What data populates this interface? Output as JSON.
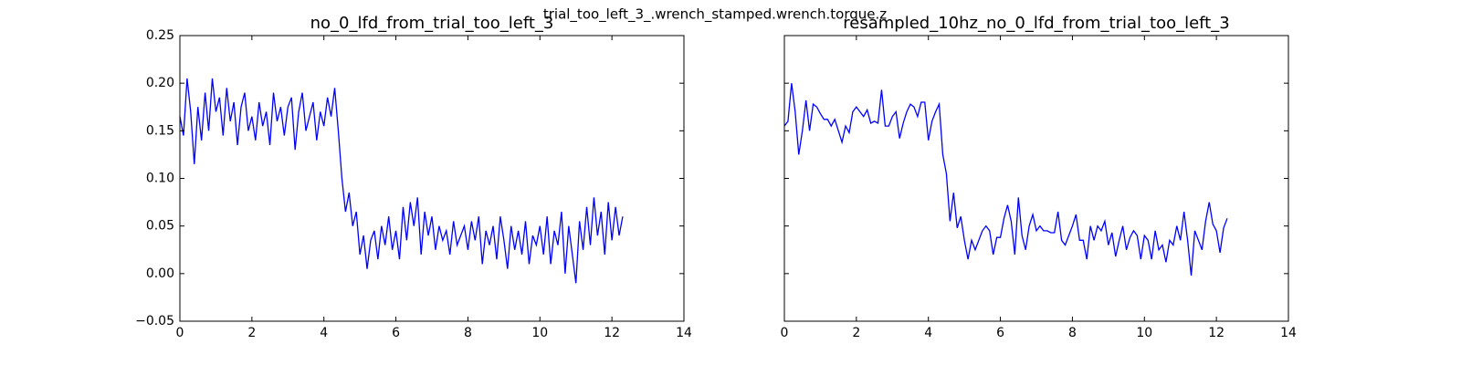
{
  "title": "trial_too_left_3_.wrench_stamped.wrench.torque.z",
  "chart_data": [
    {
      "type": "line",
      "title": "no_0_lfd_from_trial_too_left_3",
      "x": [
        0,
        0.1,
        0.2,
        0.3,
        0.4,
        0.5,
        0.6,
        0.7,
        0.8,
        0.9,
        1,
        1.1,
        1.2,
        1.3,
        1.4,
        1.5,
        1.6,
        1.7,
        1.8,
        1.9,
        2,
        2.1,
        2.2,
        2.3,
        2.4,
        2.5,
        2.6,
        2.7,
        2.8,
        2.9,
        3,
        3.1,
        3.2,
        3.3,
        3.4,
        3.5,
        3.6,
        3.7,
        3.8,
        3.9,
        4,
        4.1,
        4.2,
        4.3,
        4.4,
        4.5,
        4.6,
        4.7,
        4.8,
        4.9,
        5,
        5.1,
        5.2,
        5.3,
        5.4,
        5.5,
        5.6,
        5.7,
        5.8,
        5.9,
        6,
        6.1,
        6.2,
        6.3,
        6.4,
        6.5,
        6.6,
        6.7,
        6.8,
        6.9,
        7,
        7.1,
        7.2,
        7.3,
        7.4,
        7.5,
        7.6,
        7.7,
        7.8,
        7.9,
        8,
        8.1,
        8.2,
        8.3,
        8.4,
        8.5,
        8.6,
        8.7,
        8.8,
        8.9,
        9,
        9.1,
        9.2,
        9.3,
        9.4,
        9.5,
        9.6,
        9.7,
        9.8,
        9.9,
        10,
        10.1,
        10.2,
        10.3,
        10.4,
        10.5,
        10.6,
        10.7,
        10.8,
        10.9,
        11,
        11.1,
        11.2,
        11.3,
        11.4,
        11.5,
        11.6,
        11.7,
        11.8,
        11.9,
        12,
        12.1,
        12.2,
        12.3
      ],
      "series": [
        {
          "color": "#0000ff",
          "values": [
            0.165,
            0.145,
            0.205,
            0.17,
            0.115,
            0.175,
            0.14,
            0.19,
            0.15,
            0.205,
            0.17,
            0.185,
            0.145,
            0.195,
            0.16,
            0.18,
            0.135,
            0.175,
            0.19,
            0.15,
            0.165,
            0.14,
            0.18,
            0.155,
            0.17,
            0.135,
            0.19,
            0.16,
            0.175,
            0.145,
            0.175,
            0.185,
            0.13,
            0.17,
            0.19,
            0.15,
            0.165,
            0.18,
            0.14,
            0.17,
            0.155,
            0.185,
            0.165,
            0.195,
            0.15,
            0.1,
            0.065,
            0.085,
            0.05,
            0.065,
            0.02,
            0.04,
            0.005,
            0.035,
            0.045,
            0.015,
            0.05,
            0.03,
            0.06,
            0.025,
            0.045,
            0.015,
            0.07,
            0.035,
            0.075,
            0.05,
            0.08,
            0.02,
            0.065,
            0.04,
            0.06,
            0.025,
            0.05,
            0.035,
            0.045,
            0.02,
            0.055,
            0.03,
            0.04,
            0.05,
            0.025,
            0.055,
            0.035,
            0.06,
            0.01,
            0.045,
            0.03,
            0.05,
            0.015,
            0.06,
            0.035,
            0.005,
            0.05,
            0.025,
            0.045,
            0.02,
            0.055,
            0.01,
            0.04,
            0.03,
            0.05,
            0.02,
            0.06,
            0.01,
            0.045,
            0.03,
            0.065,
            0.0,
            0.05,
            0.02,
            -0.01,
            0.055,
            0.025,
            0.07,
            0.03,
            0.08,
            0.04,
            0.065,
            0.02,
            0.075,
            0.035,
            0.07,
            0.04,
            0.06
          ]
        }
      ],
      "xlim": [
        0,
        14
      ],
      "xticks": [
        0,
        2,
        4,
        6,
        8,
        10,
        12,
        14
      ],
      "ylim": [
        -0.05,
        0.25
      ],
      "yticks": [
        {
          "value": -0.05,
          "label": "−0.05"
        },
        {
          "value": 0,
          "label": "0.00"
        },
        0.05,
        {
          "value": 0.1,
          "label": "0.10"
        },
        0.15,
        {
          "value": 0.2,
          "label": "0.20"
        },
        0.25
      ]
    },
    {
      "type": "line",
      "title": "resampled_10hz_no_0_lfd_from_trial_too_left_3",
      "x": [
        0,
        0.1,
        0.2,
        0.3,
        0.4,
        0.5,
        0.6,
        0.7,
        0.8,
        0.9,
        1,
        1.1,
        1.2,
        1.3,
        1.4,
        1.5,
        1.6,
        1.7,
        1.8,
        1.9,
        2,
        2.1,
        2.2,
        2.3,
        2.4,
        2.5,
        2.6,
        2.7,
        2.8,
        2.9,
        3,
        3.1,
        3.2,
        3.3,
        3.4,
        3.5,
        3.6,
        3.7,
        3.8,
        3.9,
        4,
        4.1,
        4.2,
        4.3,
        4.4,
        4.5,
        4.6,
        4.7,
        4.8,
        4.9,
        5,
        5.1,
        5.2,
        5.3,
        5.4,
        5.5,
        5.6,
        5.7,
        5.8,
        5.9,
        6,
        6.1,
        6.2,
        6.3,
        6.4,
        6.5,
        6.6,
        6.7,
        6.8,
        6.9,
        7,
        7.1,
        7.2,
        7.3,
        7.4,
        7.5,
        7.6,
        7.7,
        7.8,
        7.9,
        8,
        8.1,
        8.2,
        8.3,
        8.4,
        8.5,
        8.6,
        8.7,
        8.8,
        8.9,
        9,
        9.1,
        9.2,
        9.3,
        9.4,
        9.5,
        9.6,
        9.7,
        9.8,
        9.9,
        10,
        10.1,
        10.2,
        10.3,
        10.4,
        10.5,
        10.6,
        10.7,
        10.8,
        10.9,
        11,
        11.1,
        11.2,
        11.3,
        11.4,
        11.5,
        11.6,
        11.7,
        11.8,
        11.9,
        12,
        12.1,
        12.2,
        12.3
      ],
      "series": [
        {
          "color": "#0000ff",
          "values": [
            0.155,
            0.16,
            0.2,
            0.17,
            0.125,
            0.15,
            0.182,
            0.15,
            0.178,
            0.175,
            0.168,
            0.162,
            0.162,
            0.155,
            0.162,
            0.15,
            0.138,
            0.155,
            0.148,
            0.17,
            0.175,
            0.17,
            0.165,
            0.172,
            0.158,
            0.16,
            0.158,
            0.193,
            0.155,
            0.155,
            0.165,
            0.17,
            0.142,
            0.158,
            0.17,
            0.178,
            0.175,
            0.165,
            0.18,
            0.18,
            0.14,
            0.16,
            0.17,
            0.178,
            0.125,
            0.105,
            0.055,
            0.085,
            0.048,
            0.06,
            0.035,
            0.015,
            0.035,
            0.025,
            0.035,
            0.045,
            0.05,
            0.045,
            0.02,
            0.038,
            0.038,
            0.058,
            0.072,
            0.055,
            0.02,
            0.08,
            0.04,
            0.025,
            0.05,
            0.062,
            0.045,
            0.05,
            0.045,
            0.045,
            0.043,
            0.043,
            0.065,
            0.035,
            0.03,
            0.04,
            0.05,
            0.062,
            0.035,
            0.035,
            0.015,
            0.05,
            0.035,
            0.05,
            0.045,
            0.055,
            0.03,
            0.043,
            0.018,
            0.035,
            0.05,
            0.025,
            0.038,
            0.045,
            0.04,
            0.015,
            0.04,
            0.035,
            0.015,
            0.045,
            0.025,
            0.03,
            0.012,
            0.035,
            0.03,
            0.05,
            0.035,
            0.065,
            0.035,
            -0.002,
            0.045,
            0.035,
            0.025,
            0.055,
            0.075,
            0.052,
            0.045,
            0.022,
            0.048,
            0.058
          ]
        }
      ],
      "xlim": [
        0,
        14
      ],
      "xticks": [
        0,
        2,
        4,
        6,
        8,
        10,
        12,
        14
      ],
      "ylim": [
        -0.05,
        0.25
      ],
      "yticks": [
        -0.05,
        0,
        0.05,
        0.1,
        0.15,
        0.2,
        0.25
      ]
    }
  ]
}
